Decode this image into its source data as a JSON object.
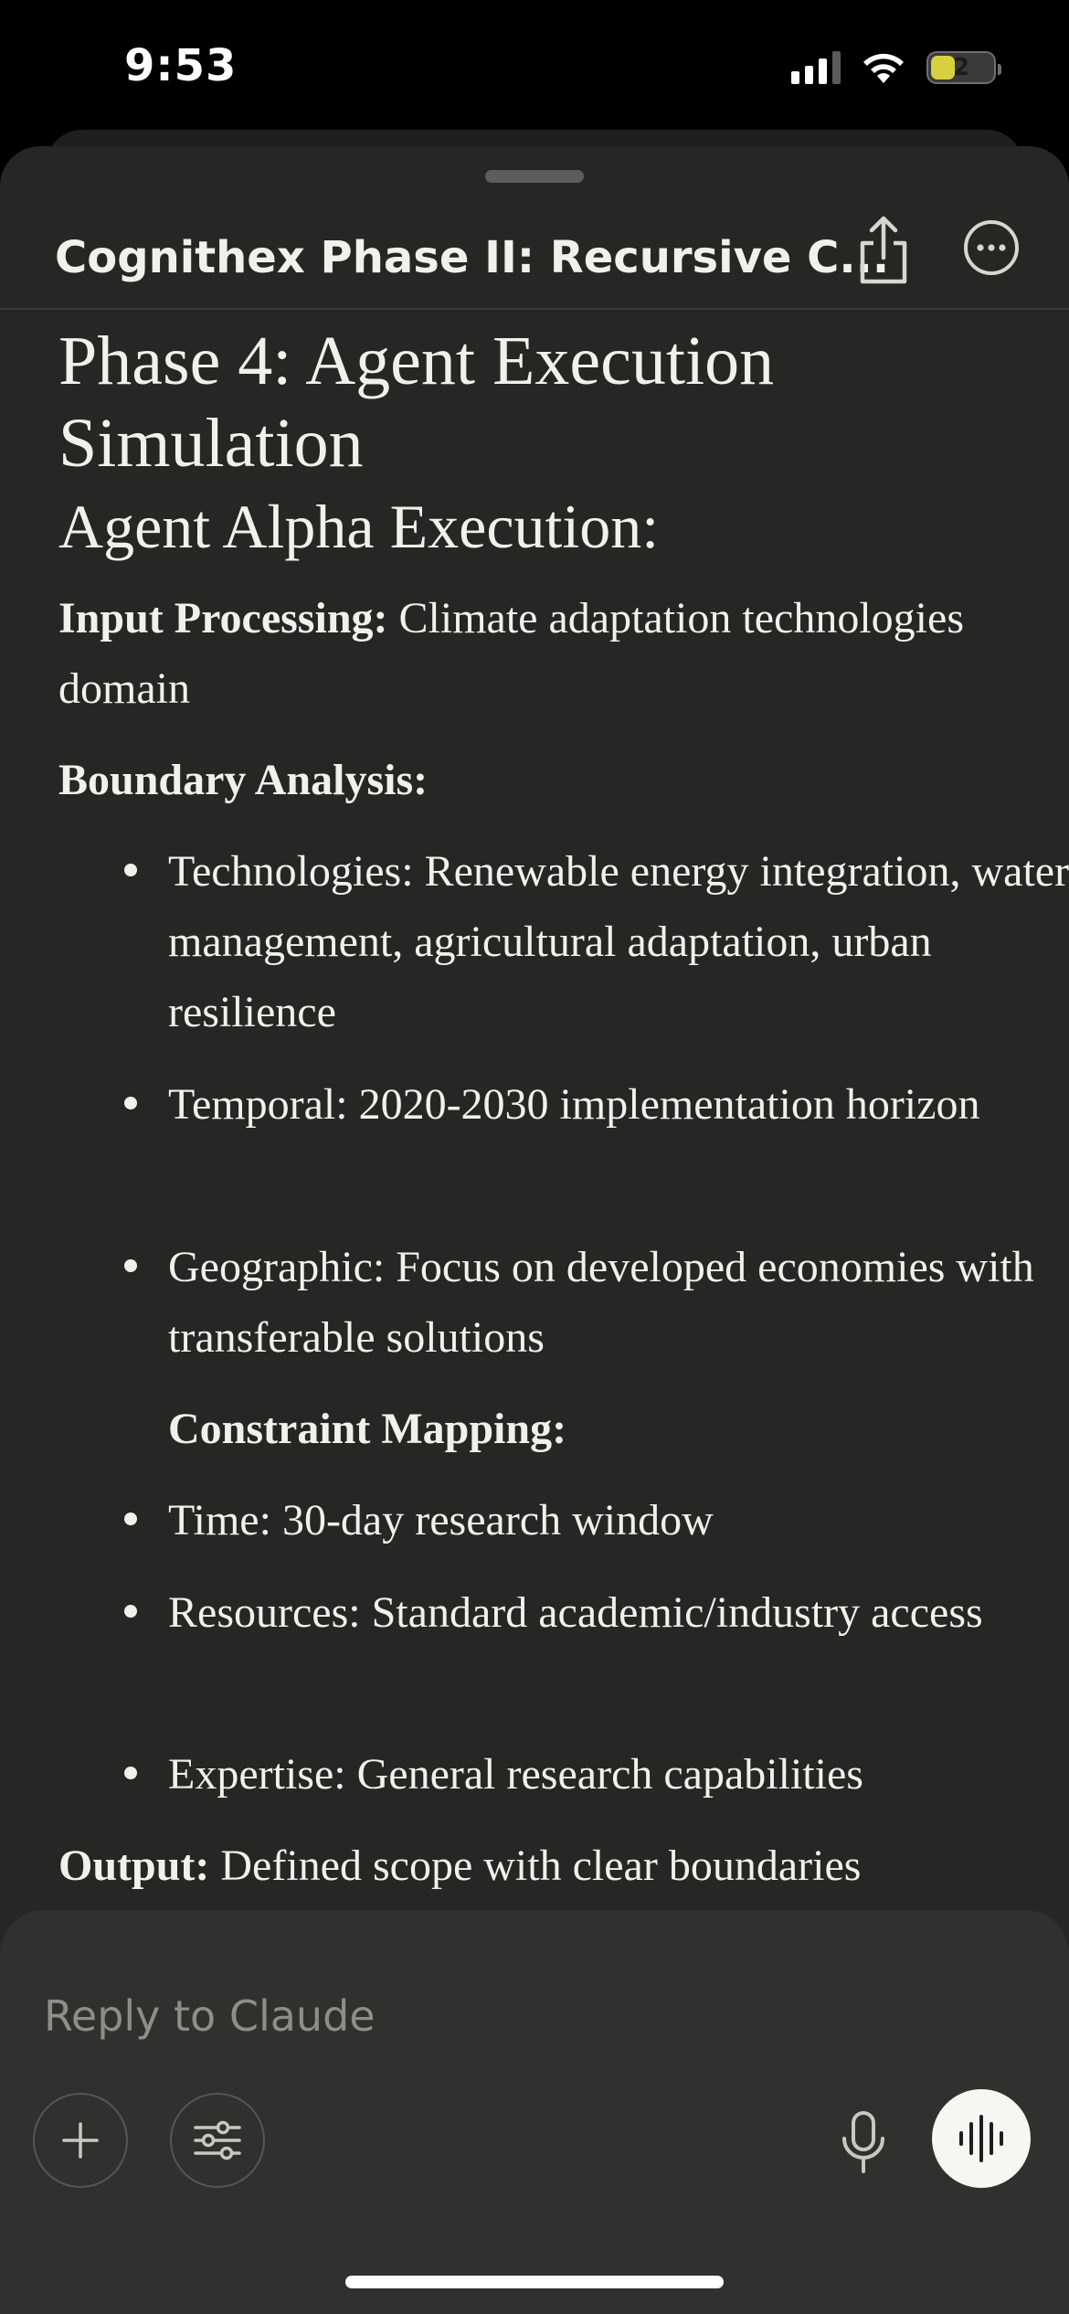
{
  "status_bar": {
    "time": "9:53",
    "battery_level": "2",
    "icons": [
      "cellular-signal-icon",
      "wifi-icon",
      "battery-icon"
    ]
  },
  "header": {
    "title": "Cognithex Phase II: Recursive C...",
    "icons": [
      "share-icon",
      "more-icon"
    ]
  },
  "content": {
    "heading": "Phase 4: Agent Execution Simulation",
    "subheading": "Agent Alpha Execution:",
    "input_processing_label": "Input Processing:",
    "input_processing_text": " Climate adaptation technologies domain",
    "boundary_label": "Boundary Analysis:",
    "boundary_items": [
      "Technologies: Renewable energy integration, water management, agricultural adaptation, urban resilience",
      "Temporal: 2020-2030 implementation horizon",
      "Geographic: Focus on developed economies with transferable solutions"
    ],
    "constraint_label": "Constraint Mapping:",
    "constraint_items": [
      "Time: 30-day research window",
      "Resources: Standard academic/industry access",
      "Expertise: General research capabilities"
    ],
    "output_label": "Output:",
    "output_text": " Defined scope with clear boundaries"
  },
  "composer": {
    "placeholder": "Reply to Claude",
    "icons": [
      "plus-icon",
      "sliders-icon",
      "microphone-icon",
      "voice-mode-icon"
    ]
  },
  "colors": {
    "background": "#000000",
    "sheet": "#262625",
    "composer": "#30302e",
    "text": "#f2f0eb",
    "placeholder": "#8e8d88"
  }
}
